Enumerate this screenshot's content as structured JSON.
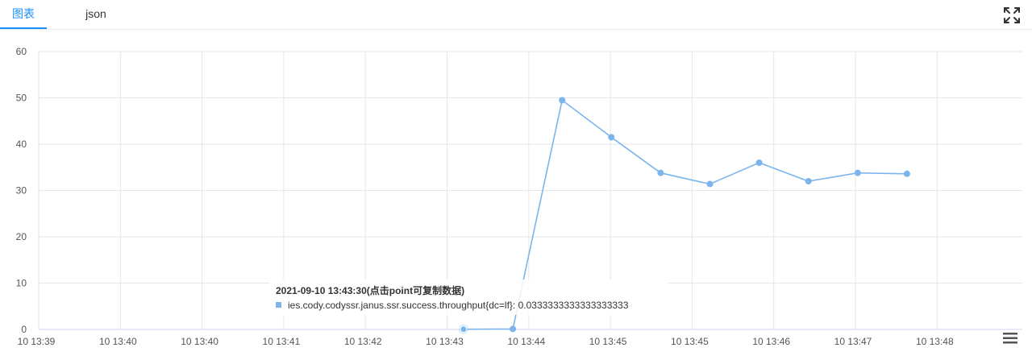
{
  "tabs": [
    {
      "label": "图表",
      "active": true
    },
    {
      "label": "json",
      "active": false
    }
  ],
  "icons": {
    "expand": "fullscreen-expand-icon",
    "menu": "hamburger-menu-icon"
  },
  "colors": {
    "accent": "#1890ff",
    "series": "#7cb5ec",
    "grid": "#e6e6e6"
  },
  "chart_data": {
    "type": "line",
    "title": "",
    "xlabel": "",
    "ylabel": "",
    "ylim": [
      0,
      60
    ],
    "y_ticks": [
      0,
      10,
      20,
      30,
      40,
      50,
      60
    ],
    "x_tick_labels": [
      "10 13:39",
      "10 13:40",
      "10 13:40",
      "10 13:41",
      "10 13:42",
      "10 13:43",
      "10 13:44",
      "10 13:45",
      "10 13:45",
      "10 13:46",
      "10 13:47",
      "10 13:48"
    ],
    "grid": true,
    "series": [
      {
        "name": "ies.cody.codyssr.janus.ssr.success.throughput{dc=lf}",
        "x": [
          "13:43:30",
          "13:44:00",
          "13:44:30",
          "13:45:00",
          "13:45:30",
          "13:46:00",
          "13:46:30",
          "13:47:00",
          "13:47:30",
          "13:48:00",
          "13:48:30"
        ],
        "values": [
          0.0333,
          0.1,
          49.5,
          41.5,
          33.8,
          31.4,
          36.0,
          32.0,
          33.8,
          33.6,
          null
        ]
      }
    ],
    "tooltip": {
      "title": "2021-09-10 13:43:30(点击point可复制数据)",
      "series_name": "ies.cody.codyssr.janus.ssr.success.throughput{dc=lf}",
      "value": "0.0333333333333333333"
    }
  }
}
